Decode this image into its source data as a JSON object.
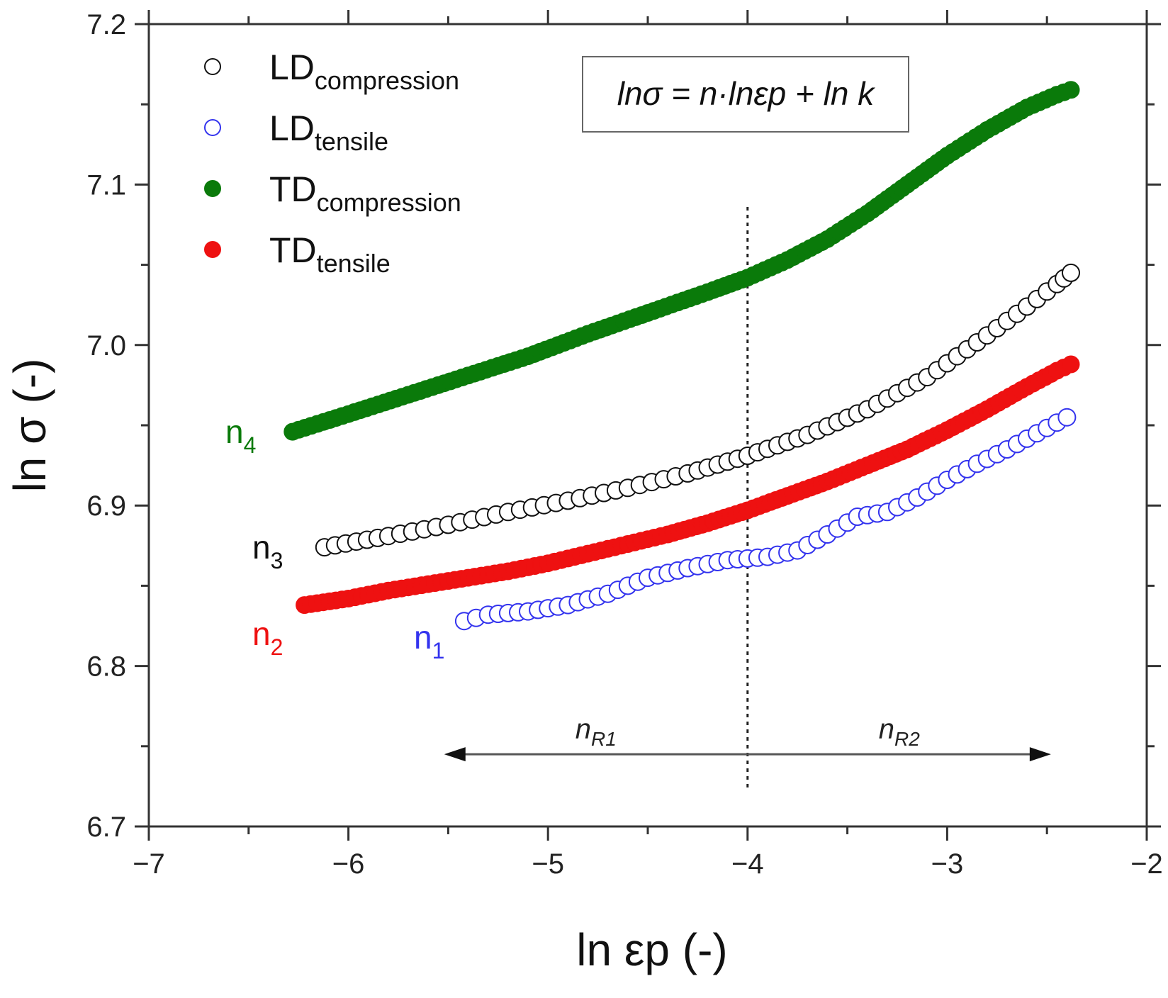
{
  "chart_data": {
    "type": "scatter",
    "xlabel": "ln εp (-)",
    "ylabel": "ln σ (-)",
    "xlim": [
      -7,
      -2
    ],
    "ylim": [
      6.7,
      7.2
    ],
    "x_ticks": [
      -7,
      -6,
      -5,
      -4,
      -3,
      -2
    ],
    "x_tick_labels": [
      "−7",
      "−6",
      "−5",
      "−4",
      "−3",
      "−2"
    ],
    "y_ticks": [
      6.7,
      6.8,
      6.9,
      7.0,
      7.1,
      7.2
    ],
    "y_tick_labels": [
      "6.7",
      "6.8",
      "6.9",
      "7.0",
      "7.1",
      "7.2"
    ],
    "grid": false,
    "legend_position": "top-left",
    "equation": "lnσ = n·lnεp + ln k",
    "vertical_marker_x": -4,
    "series": [
      {
        "name": "LD",
        "name_sub": "compression",
        "marker": "open-circle",
        "color": "#111111",
        "curve_label": "n",
        "curve_label_sub": "3",
        "x": [
          -6.12,
          -5.8,
          -5.5,
          -5.2,
          -4.9,
          -4.6,
          -4.3,
          -4.0,
          -3.7,
          -3.4,
          -3.1,
          -2.8,
          -2.6,
          -2.45,
          -2.38
        ],
        "y": [
          6.874,
          6.881,
          6.888,
          6.896,
          6.903,
          6.911,
          6.92,
          6.931,
          6.944,
          6.96,
          6.98,
          7.006,
          7.024,
          7.038,
          7.045
        ]
      },
      {
        "name": "LD",
        "name_sub": "tensile",
        "marker": "open-circle",
        "color": "#3333ee",
        "curve_label": "n",
        "curve_label_sub": "1",
        "x": [
          -5.42,
          -5.3,
          -5.1,
          -4.9,
          -4.7,
          -4.5,
          -4.3,
          -4.1,
          -3.9,
          -3.75,
          -3.6,
          -3.45,
          -3.3,
          -3.15,
          -3.0,
          -2.85,
          -2.7,
          -2.55,
          -2.4
        ],
        "y": [
          6.828,
          6.832,
          6.834,
          6.838,
          6.845,
          6.855,
          6.861,
          6.866,
          6.868,
          6.872,
          6.882,
          6.893,
          6.896,
          6.905,
          6.916,
          6.926,
          6.935,
          6.945,
          6.955
        ]
      },
      {
        "name": "TD",
        "name_sub": "compression",
        "marker": "filled-circle",
        "color": "#0a7a0a",
        "curve_label": "n",
        "curve_label_sub": "4",
        "x": [
          -6.28,
          -6.0,
          -5.7,
          -5.4,
          -5.1,
          -4.8,
          -4.5,
          -4.2,
          -4.0,
          -3.8,
          -3.6,
          -3.4,
          -3.2,
          -3.0,
          -2.8,
          -2.6,
          -2.45,
          -2.38
        ],
        "y": [
          6.946,
          6.957,
          6.969,
          6.981,
          6.993,
          7.007,
          7.02,
          7.033,
          7.042,
          7.053,
          7.066,
          7.082,
          7.1,
          7.118,
          7.134,
          7.148,
          7.156,
          7.159
        ]
      },
      {
        "name": "TD",
        "name_sub": "tensile",
        "marker": "filled-circle",
        "color": "#ee1111",
        "curve_label": "n",
        "curve_label_sub": "2",
        "x": [
          -6.22,
          -6.0,
          -5.8,
          -5.6,
          -5.4,
          -5.2,
          -5.0,
          -4.8,
          -4.6,
          -4.4,
          -4.2,
          -4.0,
          -3.8,
          -3.6,
          -3.4,
          -3.2,
          -3.0,
          -2.8,
          -2.6,
          -2.45,
          -2.38
        ],
        "y": [
          6.838,
          6.842,
          6.847,
          6.851,
          6.855,
          6.859,
          6.864,
          6.87,
          6.876,
          6.882,
          6.889,
          6.897,
          6.906,
          6.915,
          6.925,
          6.935,
          6.947,
          6.96,
          6.974,
          6.984,
          6.988
        ]
      }
    ],
    "regions": [
      {
        "label": "n",
        "label_sub": "R1",
        "x_start": -4.0,
        "x_end": -5.52
      },
      {
        "label": "n",
        "label_sub": "R2",
        "x_start": -4.0,
        "x_end": -2.48
      }
    ],
    "region_arrow_y": 6.745
  }
}
